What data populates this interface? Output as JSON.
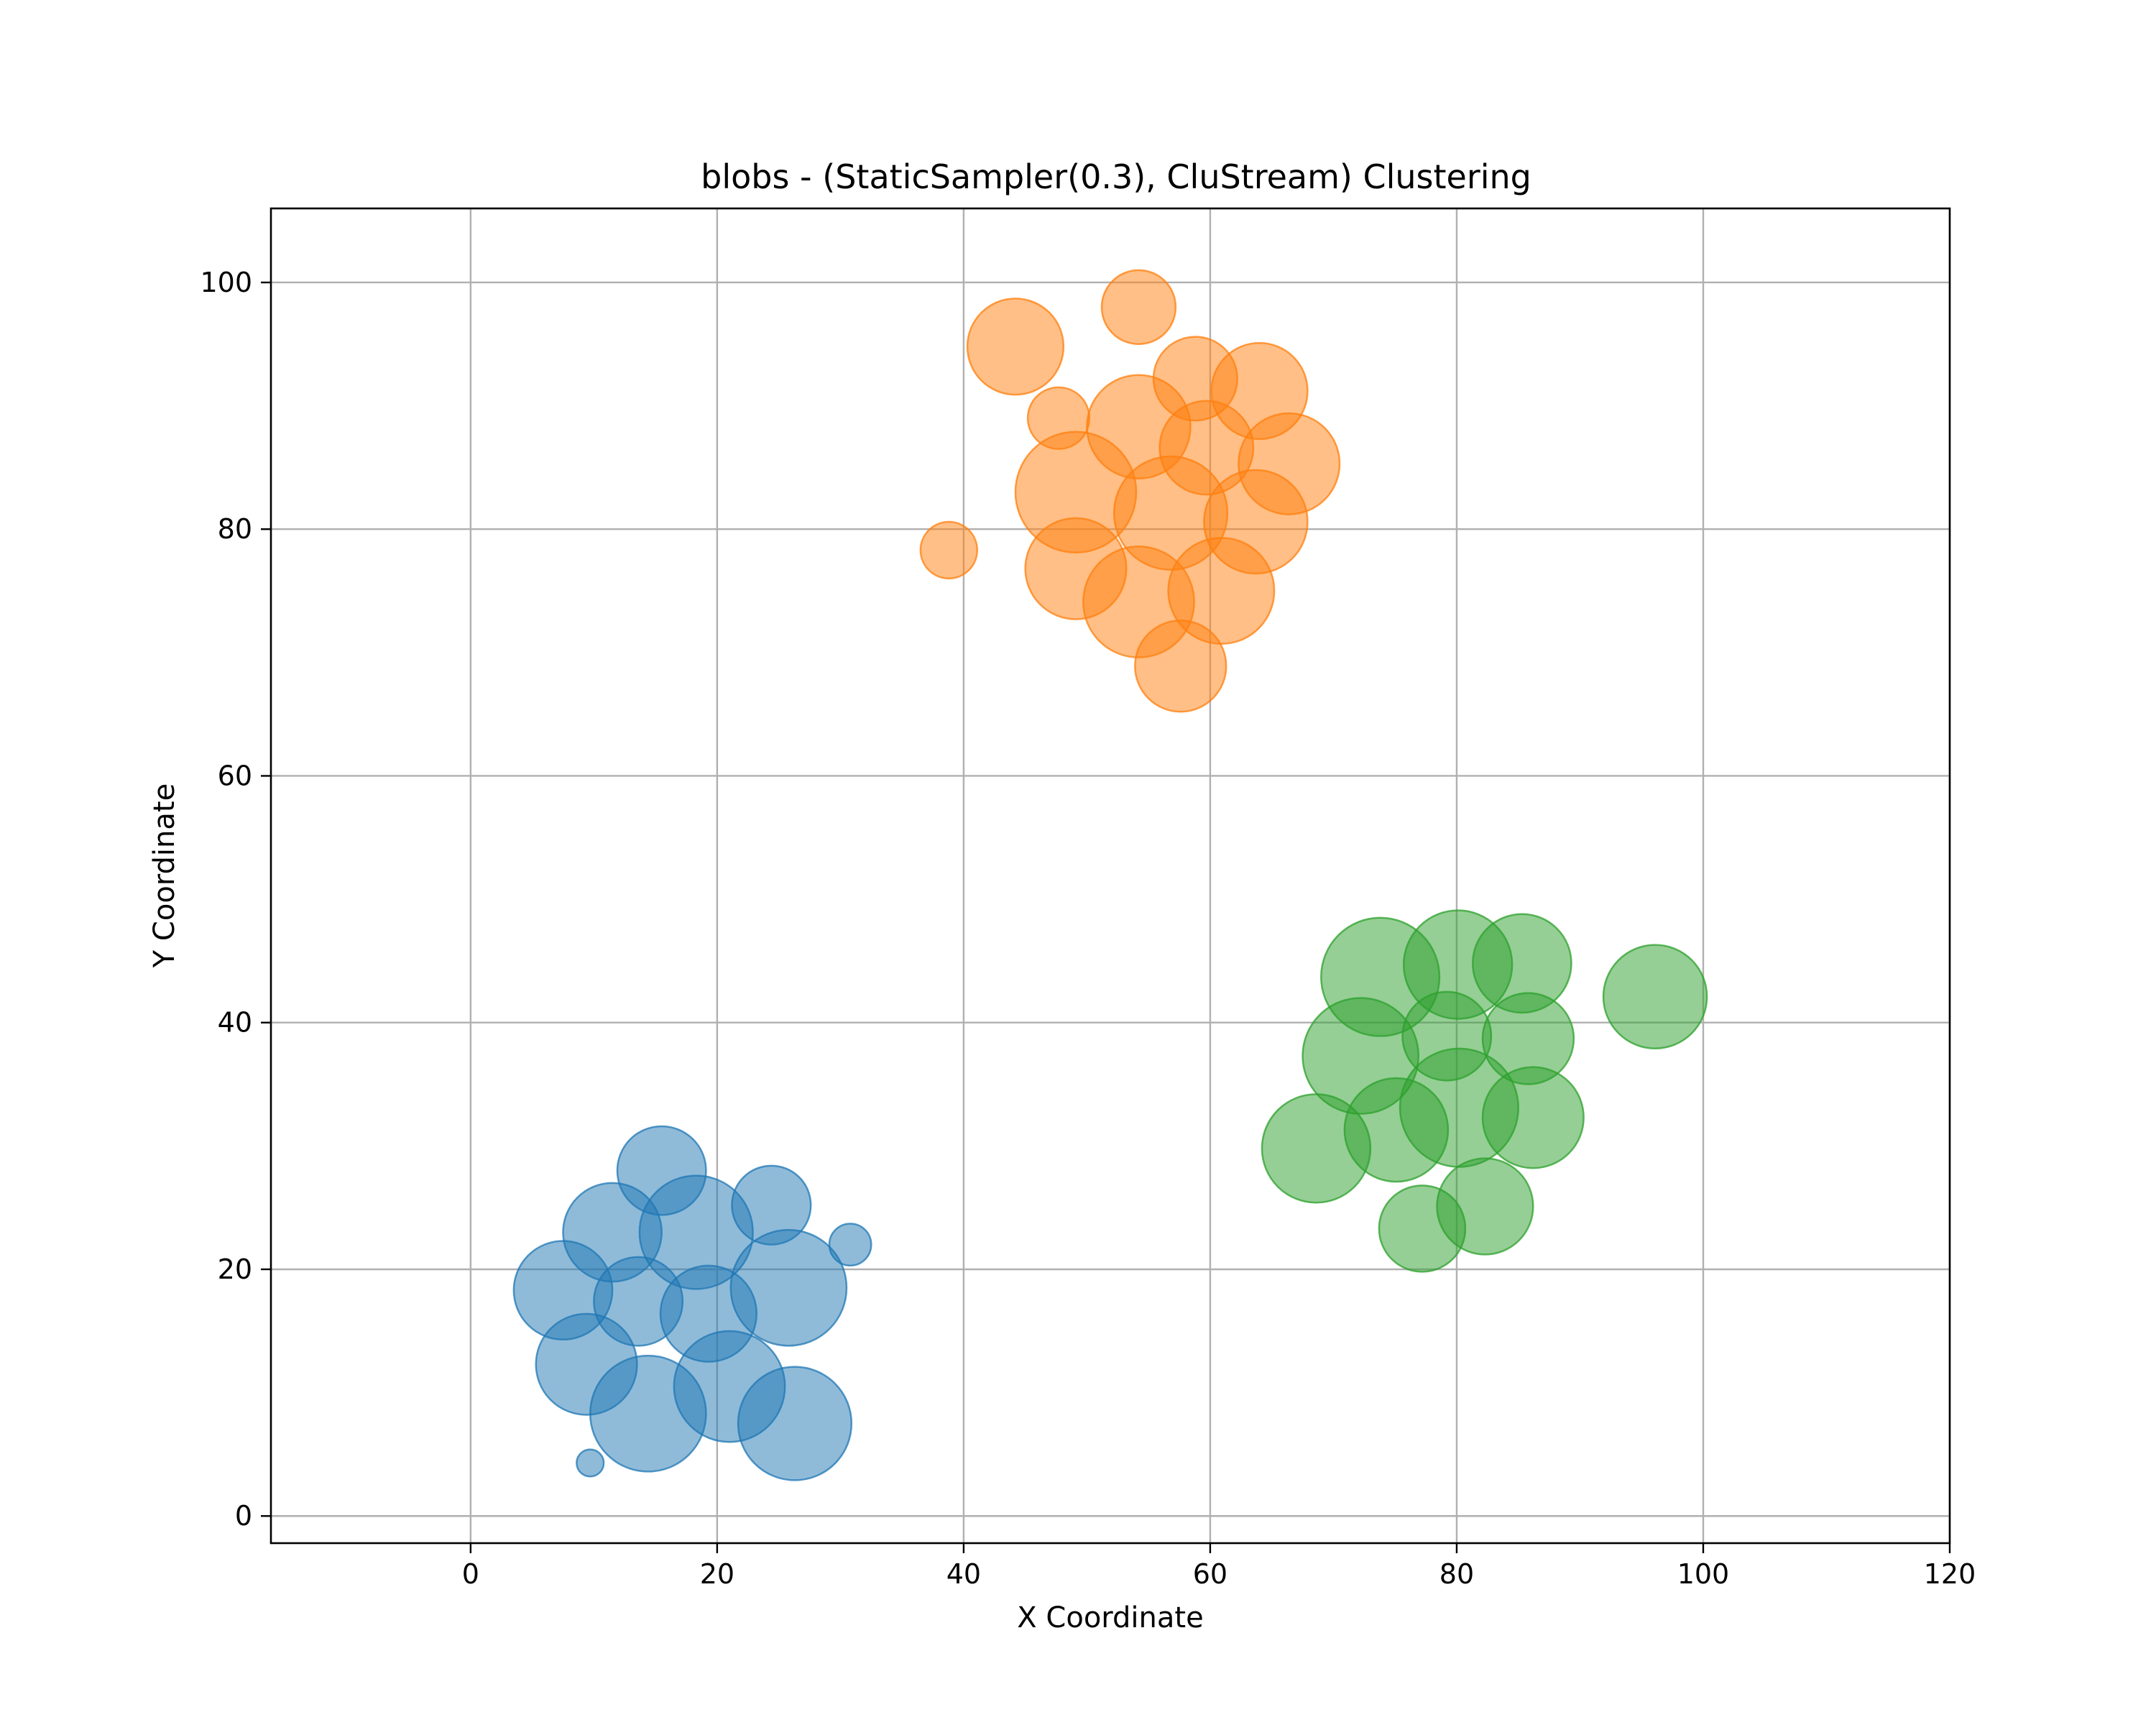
{
  "chart_data": {
    "type": "scatter",
    "title": "blobs - (StaticSampler(0.3), CluStream) Clustering",
    "xlabel": "X Coordinate",
    "ylabel": "Y Coordinate",
    "xlim": [
      -16.2,
      120
    ],
    "ylim": [
      -2.2,
      106
    ],
    "xticks": [
      0,
      20,
      40,
      60,
      80,
      100,
      120
    ],
    "yticks": [
      0,
      20,
      40,
      60,
      80,
      100
    ],
    "grid": true,
    "marker_alpha": 0.5,
    "series": [
      {
        "color": "#1f77b4",
        "points": [
          {
            "x": 15.5,
            "y": 28.0,
            "r": 3.6
          },
          {
            "x": 11.5,
            "y": 23.0,
            "r": 4.0
          },
          {
            "x": 18.3,
            "y": 23.0,
            "r": 4.6
          },
          {
            "x": 24.4,
            "y": 25.2,
            "r": 3.2
          },
          {
            "x": 30.8,
            "y": 22.0,
            "r": 1.7
          },
          {
            "x": 7.5,
            "y": 18.3,
            "r": 4.0
          },
          {
            "x": 13.6,
            "y": 17.4,
            "r": 3.6
          },
          {
            "x": 19.3,
            "y": 16.4,
            "r": 3.9
          },
          {
            "x": 25.8,
            "y": 18.5,
            "r": 4.7
          },
          {
            "x": 9.4,
            "y": 12.3,
            "r": 4.1
          },
          {
            "x": 14.4,
            "y": 8.3,
            "r": 4.7
          },
          {
            "x": 21.0,
            "y": 10.5,
            "r": 4.5
          },
          {
            "x": 26.3,
            "y": 7.5,
            "r": 4.6
          },
          {
            "x": 9.7,
            "y": 4.3,
            "r": 1.1
          }
        ]
      },
      {
        "color": "#ff7f0e",
        "points": [
          {
            "x": 54.2,
            "y": 98.0,
            "r": 3.0
          },
          {
            "x": 44.2,
            "y": 94.8,
            "r": 3.9
          },
          {
            "x": 58.8,
            "y": 92.2,
            "r": 3.4
          },
          {
            "x": 64.0,
            "y": 91.2,
            "r": 3.9
          },
          {
            "x": 47.7,
            "y": 89.0,
            "r": 2.5
          },
          {
            "x": 54.2,
            "y": 88.3,
            "r": 4.2
          },
          {
            "x": 59.7,
            "y": 86.6,
            "r": 3.8
          },
          {
            "x": 66.4,
            "y": 85.3,
            "r": 4.1
          },
          {
            "x": 49.1,
            "y": 83.0,
            "r": 4.9
          },
          {
            "x": 56.8,
            "y": 81.3,
            "r": 4.6
          },
          {
            "x": 63.7,
            "y": 80.6,
            "r": 4.2
          },
          {
            "x": 38.8,
            "y": 78.3,
            "r": 2.3
          },
          {
            "x": 49.1,
            "y": 76.8,
            "r": 4.1
          },
          {
            "x": 54.2,
            "y": 74.1,
            "r": 4.5
          },
          {
            "x": 60.9,
            "y": 75.0,
            "r": 4.3
          },
          {
            "x": 57.6,
            "y": 68.9,
            "r": 3.7
          }
        ]
      },
      {
        "color": "#2ca02c",
        "points": [
          {
            "x": 73.8,
            "y": 43.7,
            "r": 4.8
          },
          {
            "x": 80.1,
            "y": 44.7,
            "r": 4.4
          },
          {
            "x": 85.3,
            "y": 44.8,
            "r": 4.0
          },
          {
            "x": 96.1,
            "y": 42.1,
            "r": 4.2
          },
          {
            "x": 79.2,
            "y": 38.9,
            "r": 3.6
          },
          {
            "x": 85.8,
            "y": 38.7,
            "r": 3.7
          },
          {
            "x": 72.2,
            "y": 37.3,
            "r": 4.7
          },
          {
            "x": 80.2,
            "y": 33.1,
            "r": 4.8
          },
          {
            "x": 75.1,
            "y": 31.3,
            "r": 4.2
          },
          {
            "x": 86.2,
            "y": 32.3,
            "r": 4.1
          },
          {
            "x": 68.6,
            "y": 29.8,
            "r": 4.4
          },
          {
            "x": 82.3,
            "y": 25.1,
            "r": 3.9
          },
          {
            "x": 77.2,
            "y": 23.3,
            "r": 3.5
          }
        ]
      }
    ]
  }
}
